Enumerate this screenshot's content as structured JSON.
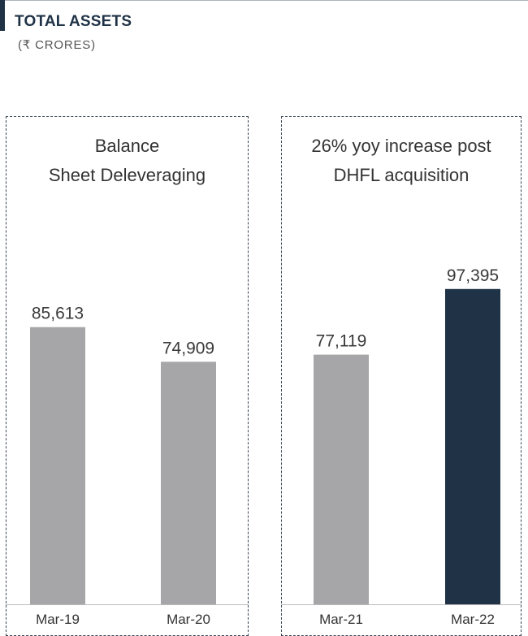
{
  "header": {
    "title": "TOTAL ASSETS",
    "subtitle": "(₹ CRORES)"
  },
  "chart_data": {
    "type": "bar",
    "title": "TOTAL ASSETS",
    "subtitle": "(₹ CRORES)",
    "categories": [
      "Mar-19",
      "Mar-20",
      "Mar-21",
      "Mar-22"
    ],
    "values": [
      85613,
      74909,
      77119,
      97395
    ],
    "value_labels": [
      "85,613",
      "74,909",
      "77,119",
      "97,395"
    ],
    "ylim": [
      0,
      143000
    ],
    "grid": false,
    "colors": [
      "#a6a6a8",
      "#a6a6a8",
      "#a6a6a8",
      "#1f3246"
    ],
    "groups": [
      {
        "label_lines": [
          "Balance",
          "Sheet Deleveraging"
        ]
      },
      {
        "label_lines": [
          "26% yoy increase post",
          "DHFL acquisition"
        ]
      }
    ]
  }
}
